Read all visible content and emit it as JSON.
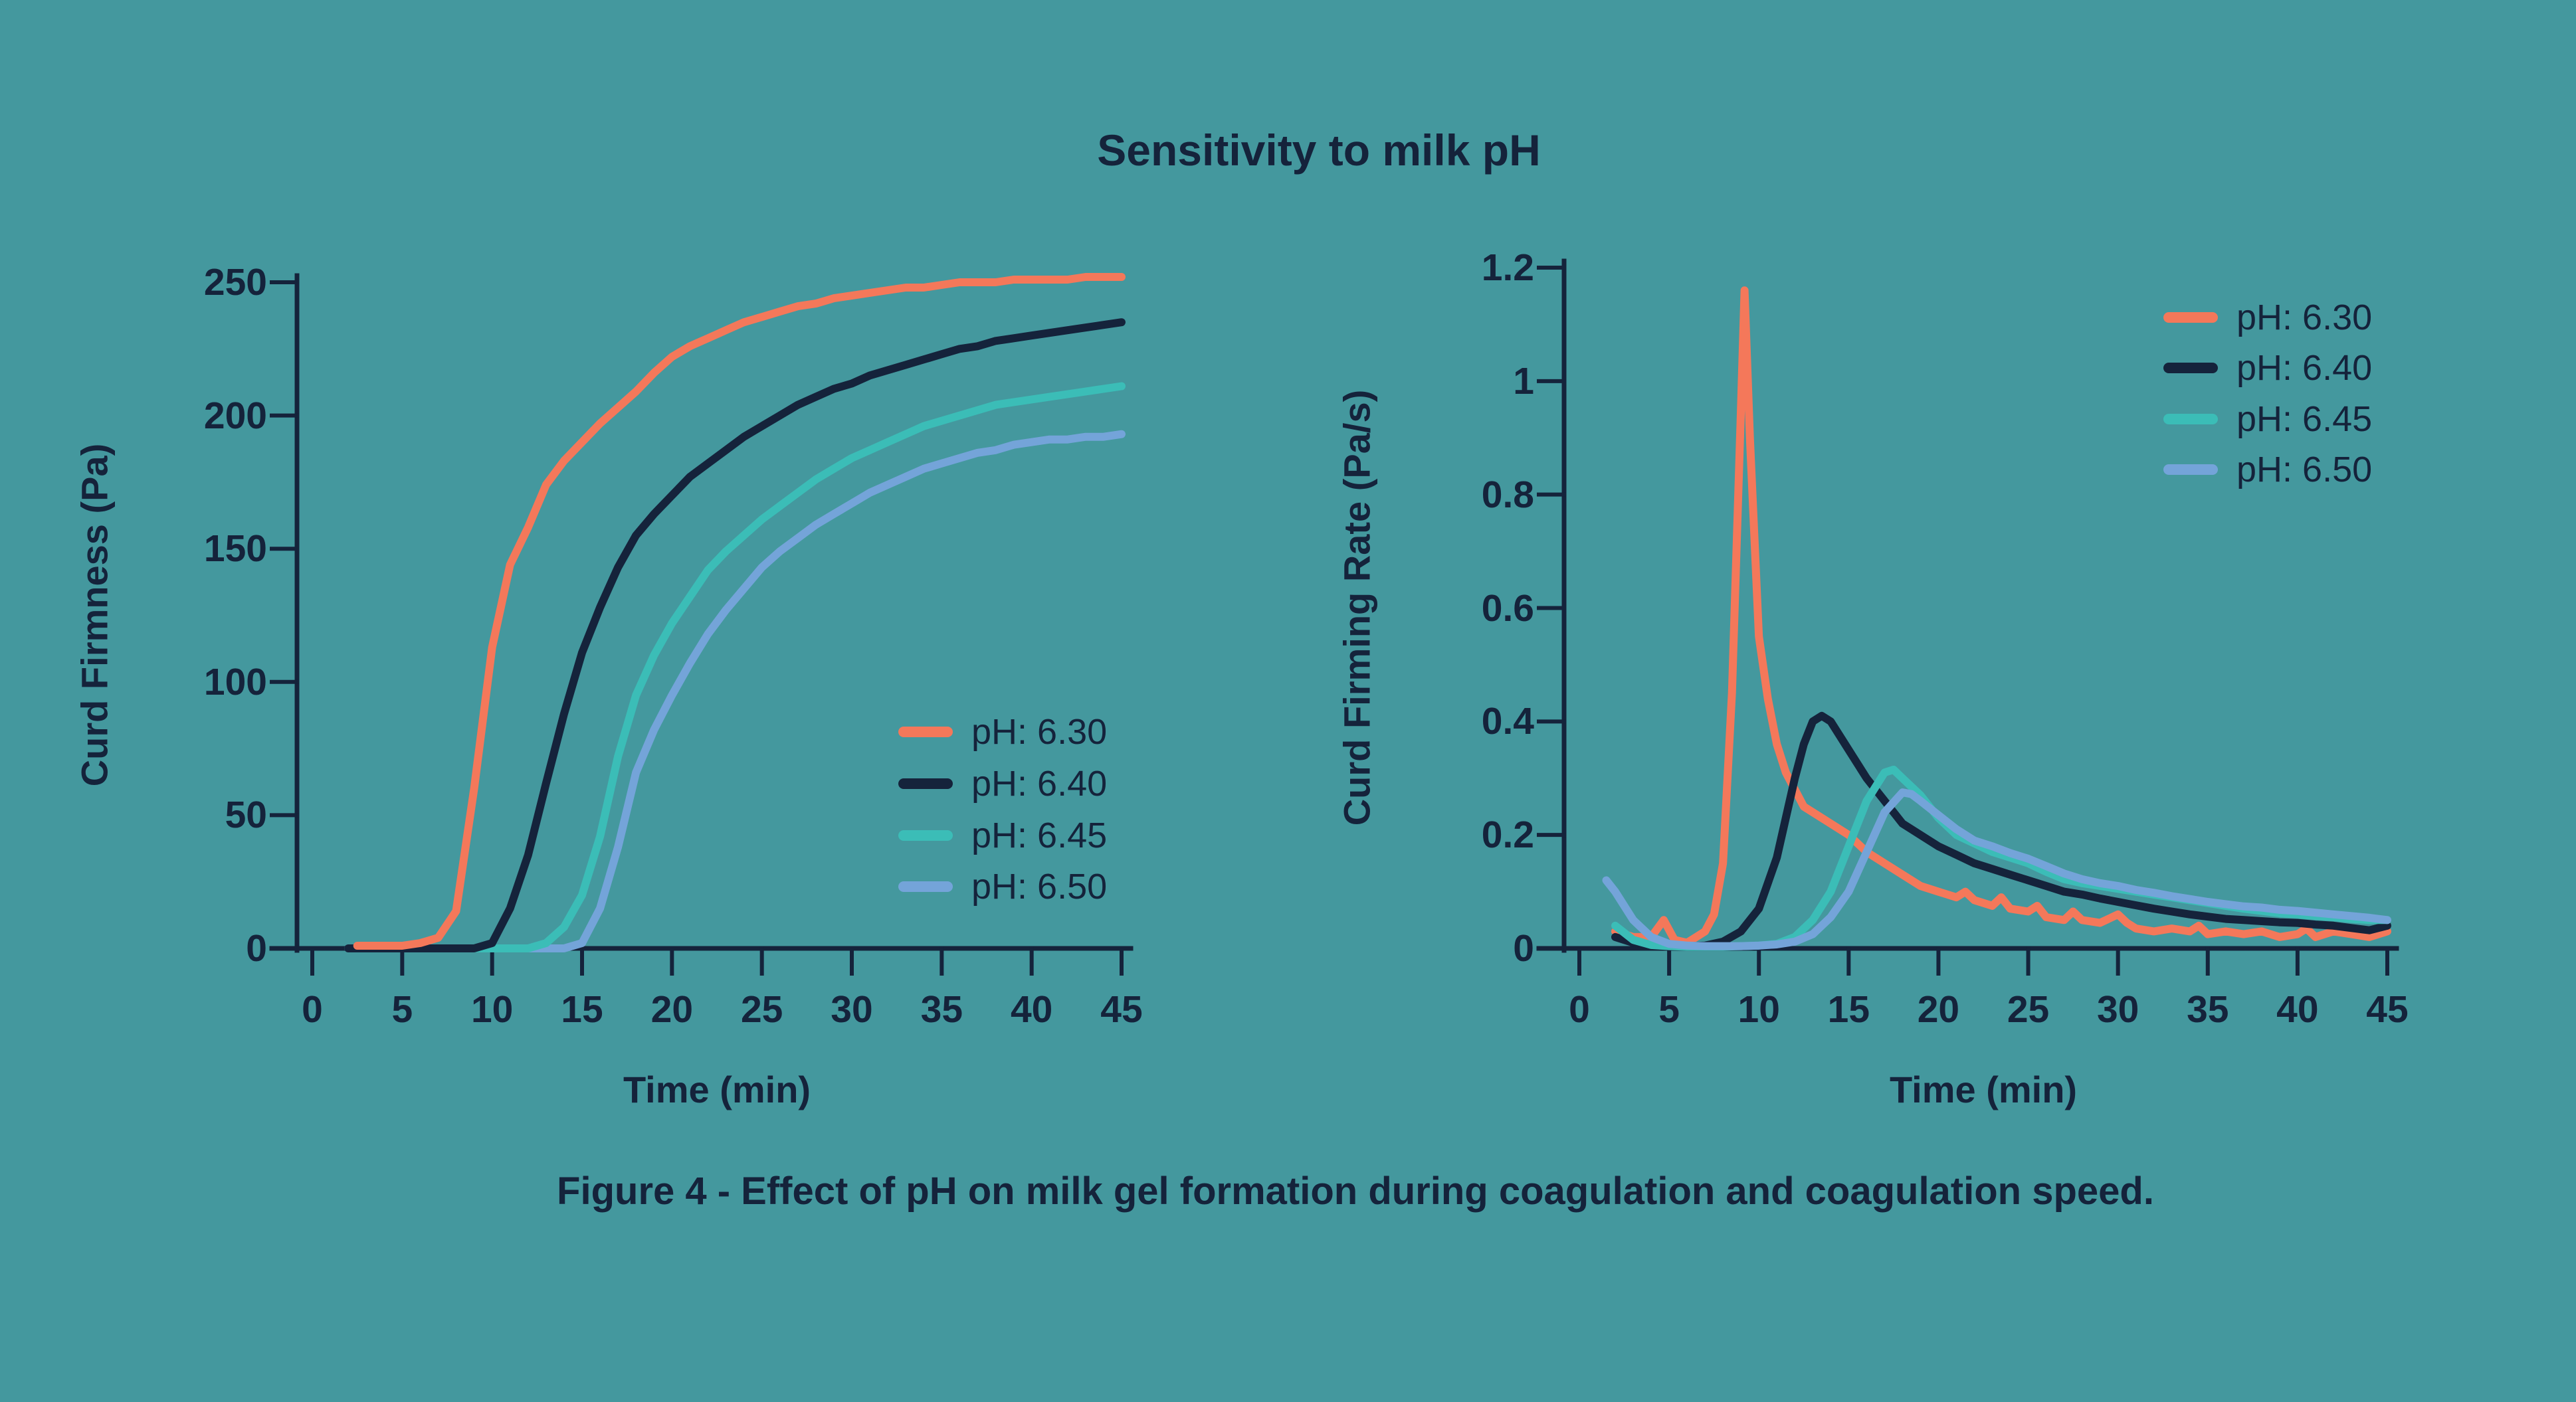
{
  "title": "Sensitivity to milk pH",
  "caption": "Figure 4 - Effect of pH on milk gel formation during coagulation and coagulation speed.",
  "colors": {
    "background": "#44989e",
    "ink": "#15233b",
    "orange": "#f4785a",
    "navy": "#15233b",
    "teal": "#3bbdb7",
    "blue": "#74a4d9"
  },
  "chart_data": [
    {
      "type": "line",
      "panel": "left",
      "xlabel": "Time (min)",
      "ylabel": "Curd Firmness (Pa)",
      "xlim": [
        0,
        45
      ],
      "ylim": [
        0,
        250
      ],
      "grid": false,
      "legend_position": "lower right",
      "xticks": [
        0,
        5,
        10,
        15,
        20,
        25,
        30,
        35,
        40,
        45
      ],
      "xtick_labels": [
        "0",
        "5",
        "10",
        "15",
        "20",
        "25",
        "30",
        "35",
        "40",
        "45"
      ],
      "yticks": [
        0,
        50,
        100,
        150,
        200,
        250
      ],
      "ytick_labels": [
        "0",
        "50",
        "100",
        "150",
        "200",
        "250"
      ],
      "series": [
        {
          "name": "pH: 6.30",
          "color": "orange",
          "x": [
            2.5,
            3,
            4,
            5,
            6,
            7,
            8,
            9,
            10,
            11,
            12,
            13,
            14,
            15,
            16,
            17,
            18,
            19,
            20,
            21,
            22,
            23,
            24,
            25,
            26,
            27,
            28,
            29,
            30,
            31,
            32,
            33,
            34,
            35,
            36,
            37,
            38,
            39,
            40,
            41,
            42,
            43,
            44,
            45
          ],
          "y": [
            1,
            1,
            1,
            1,
            2,
            4,
            14,
            60,
            113,
            144,
            158,
            174,
            183,
            190,
            197,
            203,
            209,
            216,
            222,
            226,
            229,
            232,
            235,
            237,
            239,
            241,
            242,
            244,
            245,
            246,
            247,
            248,
            248,
            249,
            250,
            250,
            250,
            251,
            251,
            251,
            251,
            252,
            252,
            252
          ]
        },
        {
          "name": "pH: 6.40",
          "color": "navy",
          "x": [
            2,
            3,
            4,
            5,
            6,
            7,
            8,
            9,
            10,
            11,
            12,
            13,
            14,
            15,
            16,
            17,
            18,
            19,
            20,
            21,
            22,
            23,
            24,
            25,
            26,
            27,
            28,
            29,
            30,
            31,
            32,
            33,
            34,
            35,
            36,
            37,
            38,
            39,
            40,
            41,
            42,
            43,
            44,
            45
          ],
          "y": [
            0,
            0,
            0,
            0,
            0,
            0,
            0,
            0,
            2,
            15,
            35,
            62,
            88,
            111,
            128,
            143,
            155,
            163,
            170,
            177,
            182,
            187,
            192,
            196,
            200,
            204,
            207,
            210,
            212,
            215,
            217,
            219,
            221,
            223,
            225,
            226,
            228,
            229,
            230,
            231,
            232,
            233,
            234,
            235
          ]
        },
        {
          "name": "pH: 6.45",
          "color": "teal",
          "x": [
            2,
            3,
            4,
            5,
            6,
            7,
            8,
            9,
            10,
            11,
            12,
            13,
            14,
            15,
            16,
            17,
            18,
            19,
            20,
            21,
            22,
            23,
            24,
            25,
            26,
            27,
            28,
            29,
            30,
            31,
            32,
            33,
            34,
            35,
            36,
            37,
            38,
            39,
            40,
            41,
            42,
            43,
            44,
            45
          ],
          "y": [
            0,
            0,
            0,
            0,
            0,
            0,
            0,
            0,
            0,
            0,
            0,
            2,
            8,
            20,
            42,
            72,
            95,
            110,
            122,
            132,
            142,
            149,
            155,
            161,
            166,
            171,
            176,
            180,
            184,
            187,
            190,
            193,
            196,
            198,
            200,
            202,
            204,
            205,
            206,
            207,
            208,
            209,
            210,
            211
          ]
        },
        {
          "name": "pH: 6.50",
          "color": "blue",
          "x": [
            2,
            3,
            4,
            5,
            6,
            7,
            8,
            9,
            10,
            11,
            12,
            13,
            14,
            15,
            16,
            17,
            18,
            19,
            20,
            21,
            22,
            23,
            24,
            25,
            26,
            27,
            28,
            29,
            30,
            31,
            32,
            33,
            34,
            35,
            36,
            37,
            38,
            39,
            40,
            41,
            42,
            43,
            44,
            45
          ],
          "y": [
            0,
            0,
            0,
            0,
            0,
            0,
            0,
            0,
            0,
            0,
            0,
            0,
            0,
            2,
            15,
            38,
            66,
            82,
            95,
            107,
            118,
            127,
            135,
            143,
            149,
            154,
            159,
            163,
            167,
            171,
            174,
            177,
            180,
            182,
            184,
            186,
            187,
            189,
            190,
            191,
            191,
            192,
            192,
            193
          ]
        }
      ]
    },
    {
      "type": "line",
      "panel": "right",
      "xlabel": "Time (min)",
      "ylabel": "Curd Firming Rate (Pa/s)",
      "xlim": [
        0,
        45
      ],
      "ylim": [
        0,
        1.2
      ],
      "grid": false,
      "legend_position": "upper right",
      "xticks": [
        0,
        5,
        10,
        15,
        20,
        25,
        30,
        35,
        40,
        45
      ],
      "xtick_labels": [
        "0",
        "5",
        "10",
        "15",
        "20",
        "25",
        "30",
        "35",
        "40",
        "45"
      ],
      "yticks": [
        0,
        0.2,
        0.4,
        0.6,
        0.8,
        1,
        1.2
      ],
      "ytick_labels": [
        "0",
        "0.2",
        "0.4",
        "0.6",
        "0.8",
        "1",
        "1.2"
      ],
      "series": [
        {
          "name": "pH: 6.30",
          "color": "orange",
          "x": [
            2,
            3,
            4,
            4.7,
            5.3,
            6,
            7,
            7.5,
            8,
            8.5,
            9,
            9.2,
            9.5,
            10,
            10.5,
            11,
            11.5,
            12,
            12.5,
            13,
            14,
            15,
            16,
            17,
            18,
            19,
            20,
            21,
            21.5,
            22,
            23,
            23.5,
            24,
            25,
            25.5,
            26,
            27,
            27.5,
            28,
            29,
            30,
            30.5,
            31,
            32,
            33,
            34,
            34.5,
            35,
            36,
            37,
            38,
            39,
            40,
            40.5,
            41,
            42,
            43,
            44,
            45
          ],
          "y": [
            0.03,
            0.02,
            0.02,
            0.05,
            0.015,
            0.01,
            0.03,
            0.06,
            0.15,
            0.45,
            0.95,
            1.16,
            0.9,
            0.55,
            0.44,
            0.36,
            0.31,
            0.28,
            0.25,
            0.24,
            0.22,
            0.2,
            0.17,
            0.15,
            0.13,
            0.11,
            0.1,
            0.09,
            0.1,
            0.085,
            0.075,
            0.09,
            0.07,
            0.065,
            0.075,
            0.055,
            0.05,
            0.065,
            0.05,
            0.045,
            0.06,
            0.045,
            0.035,
            0.03,
            0.035,
            0.03,
            0.04,
            0.025,
            0.03,
            0.025,
            0.03,
            0.02,
            0.025,
            0.035,
            0.02,
            0.03,
            0.025,
            0.02,
            0.03
          ]
        },
        {
          "name": "pH: 6.40",
          "color": "navy",
          "x": [
            2,
            3,
            4,
            5,
            6,
            7,
            8,
            9,
            10,
            11,
            12,
            12.5,
            13,
            13.5,
            14,
            15,
            16,
            17,
            18,
            19,
            20,
            21,
            22,
            23,
            24,
            25,
            26,
            27,
            28,
            29,
            30,
            31,
            32,
            33,
            34,
            35,
            36,
            37,
            38,
            39,
            40,
            41,
            42,
            43,
            44,
            45
          ],
          "y": [
            0.02,
            0.01,
            0.006,
            0.004,
            0.004,
            0.005,
            0.012,
            0.03,
            0.07,
            0.16,
            0.3,
            0.36,
            0.4,
            0.41,
            0.4,
            0.35,
            0.3,
            0.26,
            0.22,
            0.2,
            0.18,
            0.165,
            0.15,
            0.14,
            0.13,
            0.12,
            0.11,
            0.1,
            0.095,
            0.088,
            0.082,
            0.076,
            0.07,
            0.065,
            0.06,
            0.056,
            0.052,
            0.05,
            0.048,
            0.046,
            0.045,
            0.042,
            0.04,
            0.036,
            0.032,
            0.04
          ]
        },
        {
          "name": "pH: 6.45",
          "color": "teal",
          "x": [
            2,
            3,
            4,
            5,
            6,
            7,
            8,
            9,
            10,
            11,
            12,
            13,
            14,
            15,
            16,
            17,
            17.5,
            18,
            19,
            20,
            21,
            22,
            23,
            24,
            25,
            26,
            27,
            28,
            29,
            30,
            31,
            32,
            33,
            34,
            35,
            36,
            37,
            38,
            39,
            40,
            41,
            42,
            43,
            44,
            45
          ],
          "y": [
            0.04,
            0.015,
            0.006,
            0.004,
            0.003,
            0.003,
            0.003,
            0.004,
            0.005,
            0.008,
            0.02,
            0.05,
            0.1,
            0.18,
            0.26,
            0.31,
            0.315,
            0.3,
            0.27,
            0.23,
            0.2,
            0.185,
            0.17,
            0.16,
            0.15,
            0.135,
            0.122,
            0.115,
            0.11,
            0.105,
            0.1,
            0.095,
            0.09,
            0.085,
            0.08,
            0.075,
            0.07,
            0.066,
            0.062,
            0.06,
            0.057,
            0.055,
            0.052,
            0.05,
            0.05
          ]
        },
        {
          "name": "pH: 6.50",
          "color": "blue",
          "x": [
            1.5,
            2,
            3,
            4,
            5,
            6,
            7,
            8,
            9,
            10,
            11,
            12,
            13,
            14,
            15,
            16,
            17,
            18,
            18.5,
            19,
            20,
            21,
            22,
            23,
            24,
            25,
            26,
            27,
            28,
            29,
            30,
            31,
            32,
            33,
            34,
            35,
            36,
            37,
            38,
            39,
            40,
            41,
            42,
            43,
            44,
            45
          ],
          "y": [
            0.12,
            0.1,
            0.05,
            0.02,
            0.008,
            0.005,
            0.004,
            0.004,
            0.004,
            0.005,
            0.007,
            0.012,
            0.025,
            0.055,
            0.1,
            0.17,
            0.24,
            0.275,
            0.272,
            0.26,
            0.235,
            0.21,
            0.19,
            0.18,
            0.168,
            0.158,
            0.145,
            0.132,
            0.122,
            0.115,
            0.11,
            0.103,
            0.098,
            0.092,
            0.087,
            0.082,
            0.078,
            0.074,
            0.072,
            0.068,
            0.066,
            0.063,
            0.06,
            0.057,
            0.054,
            0.05
          ]
        }
      ]
    }
  ]
}
